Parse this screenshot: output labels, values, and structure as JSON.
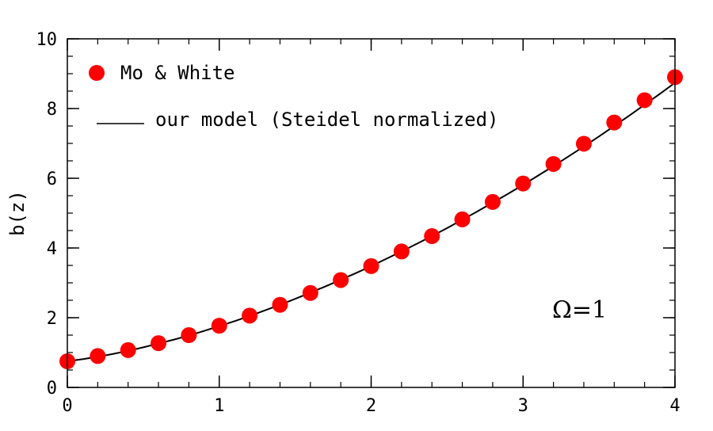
{
  "chart_data": {
    "type": "scatter",
    "xlabel": "z",
    "ylabel": "b(z)",
    "xlim": [
      0,
      4
    ],
    "ylim": [
      0,
      10
    ],
    "x_ticks": [
      0,
      1,
      2,
      3,
      4
    ],
    "y_ticks": [
      0,
      2,
      4,
      6,
      8,
      10
    ],
    "x_tick_labels": [
      "0",
      "1",
      "2",
      "3",
      "4"
    ],
    "y_tick_labels": [
      "0",
      "2",
      "4",
      "6",
      "8",
      "10"
    ],
    "x_minor_step": 0.2,
    "y_minor_step": 0.5,
    "grid": false,
    "legend_position": "top-left",
    "series": [
      {
        "name": "Mo & White",
        "kind": "points",
        "color": "#ff0000",
        "x": [
          0,
          0.2,
          0.4,
          0.6,
          0.8,
          1.0,
          1.2,
          1.4,
          1.6,
          1.8,
          2.0,
          2.2,
          2.4,
          2.6,
          2.8,
          3.0,
          3.2,
          3.4,
          3.6,
          3.8,
          4.0
        ],
        "y": [
          0.75,
          0.9,
          1.07,
          1.27,
          1.5,
          1.77,
          2.06,
          2.37,
          2.71,
          3.08,
          3.48,
          3.9,
          4.34,
          4.82,
          5.32,
          5.85,
          6.41,
          6.99,
          7.6,
          8.24,
          8.9
        ]
      },
      {
        "name": "our model (Steidel normalized)",
        "kind": "line",
        "color": "#000000",
        "x": [
          0,
          0.1,
          0.2,
          0.3,
          0.4,
          0.5,
          0.6,
          0.7,
          0.8,
          0.9,
          1.0,
          1.1,
          1.2,
          1.3,
          1.4,
          1.5,
          1.6,
          1.7,
          1.8,
          1.9,
          2.0,
          2.1,
          2.2,
          2.3,
          2.4,
          2.5,
          2.6,
          2.7,
          2.8,
          2.9,
          3.0,
          3.1,
          3.2,
          3.3,
          3.4,
          3.5,
          3.6,
          3.7,
          3.8,
          3.9,
          4.0
        ],
        "y": [
          0.75,
          0.81,
          0.88,
          0.96,
          1.05,
          1.15,
          1.26,
          1.37,
          1.49,
          1.62,
          1.76,
          1.9,
          2.05,
          2.21,
          2.37,
          2.54,
          2.72,
          2.9,
          3.09,
          3.28,
          3.48,
          3.69,
          3.9,
          4.12,
          4.34,
          4.57,
          4.81,
          5.05,
          5.3,
          5.55,
          5.81,
          6.08,
          6.35,
          6.63,
          6.91,
          7.2,
          7.5,
          7.8,
          8.11,
          8.42,
          8.74
        ]
      }
    ],
    "annotations": [
      {
        "text": "Ω=1",
        "position": "lower-right"
      }
    ]
  }
}
